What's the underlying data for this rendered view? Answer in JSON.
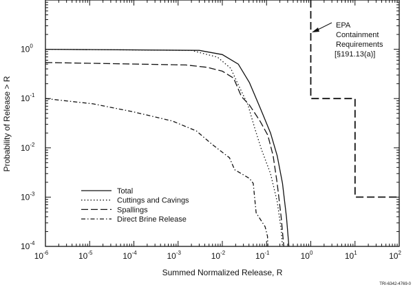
{
  "chart_data": {
    "type": "line",
    "xscale": "log",
    "yscale": "log",
    "xlabel": "Summed Normalized Release, R",
    "ylabel": "Probability of Release > R",
    "xlim": [
      1e-06,
      100
    ],
    "ylim": [
      0.0001,
      10
    ],
    "x_ticks": [
      {
        "base": "10",
        "exp": "-6"
      },
      {
        "base": "10",
        "exp": "-5"
      },
      {
        "base": "10",
        "exp": "-4"
      },
      {
        "base": "10",
        "exp": "-3"
      },
      {
        "base": "10",
        "exp": "-2"
      },
      {
        "base": "10",
        "exp": "-1"
      },
      {
        "base": "10",
        "exp": "0"
      },
      {
        "base": "10",
        "exp": "1"
      },
      {
        "base": "10",
        "exp": "2"
      }
    ],
    "y_ticks": [
      {
        "base": "10",
        "exp": "0"
      },
      {
        "base": "10",
        "exp": "-1"
      },
      {
        "base": "10",
        "exp": "-2"
      },
      {
        "base": "10",
        "exp": "-3"
      },
      {
        "base": "10",
        "exp": "-4"
      }
    ],
    "legend_position": "bottom-left",
    "series": [
      {
        "name": "Total",
        "style": "solid",
        "x": [
          1e-06,
          0.003,
          0.01,
          0.023,
          0.041,
          0.071,
          0.123,
          0.174,
          0.229,
          0.282,
          0.32
        ],
        "y": [
          1,
          0.95,
          0.78,
          0.5,
          0.21,
          0.066,
          0.02,
          0.0069,
          0.0019,
          0.00039,
          0.0001
        ]
      },
      {
        "name": "Cuttings and Cavings",
        "style": "dotted",
        "x": [
          1e-06,
          0.002,
          0.0078,
          0.0155,
          0.023,
          0.038,
          0.054,
          0.076,
          0.123,
          0.174,
          0.214,
          0.229
        ],
        "y": [
          1,
          0.95,
          0.69,
          0.41,
          0.19,
          0.074,
          0.025,
          0.0095,
          0.003,
          0.00081,
          0.00022,
          0.0001
        ]
      },
      {
        "name": "Spallings",
        "style": "dashed",
        "x": [
          1e-06,
          0.0015,
          0.0045,
          0.01,
          0.018,
          0.027,
          0.041,
          0.071,
          0.107,
          0.141,
          0.174,
          0.214,
          0.245
        ],
        "y": [
          0.54,
          0.48,
          0.43,
          0.36,
          0.26,
          0.11,
          0.074,
          0.035,
          0.018,
          0.0069,
          0.0019,
          0.00039,
          0.0001
        ]
      },
      {
        "name": "Direct Brine Release",
        "style": "dashdot",
        "x": [
          1e-06,
          1.2e-05,
          9.5e-05,
          0.00074,
          0.0026,
          0.0059,
          0.0145,
          0.019,
          0.041,
          0.05,
          0.058,
          0.093,
          0.105,
          0.107
        ],
        "y": [
          0.1,
          0.078,
          0.054,
          0.035,
          0.022,
          0.0117,
          0.0063,
          0.0036,
          0.0024,
          0.0019,
          0.00048,
          0.00025,
          0.00016,
          0.0001
        ]
      }
    ],
    "limit_line": {
      "name": "EPA Containment Requirements",
      "style": "longdash",
      "x": [
        1,
        1,
        10,
        10,
        100
      ],
      "y": [
        10,
        0.1,
        0.1,
        0.001,
        0.001
      ]
    },
    "annotation": {
      "lines": [
        "EPA",
        "Containment",
        "Requirements",
        "[§191.13(a)]"
      ],
      "points_to": {
        "x": 1,
        "y": 2.3
      }
    }
  },
  "figure_id": "TRI-6342-4769-0"
}
